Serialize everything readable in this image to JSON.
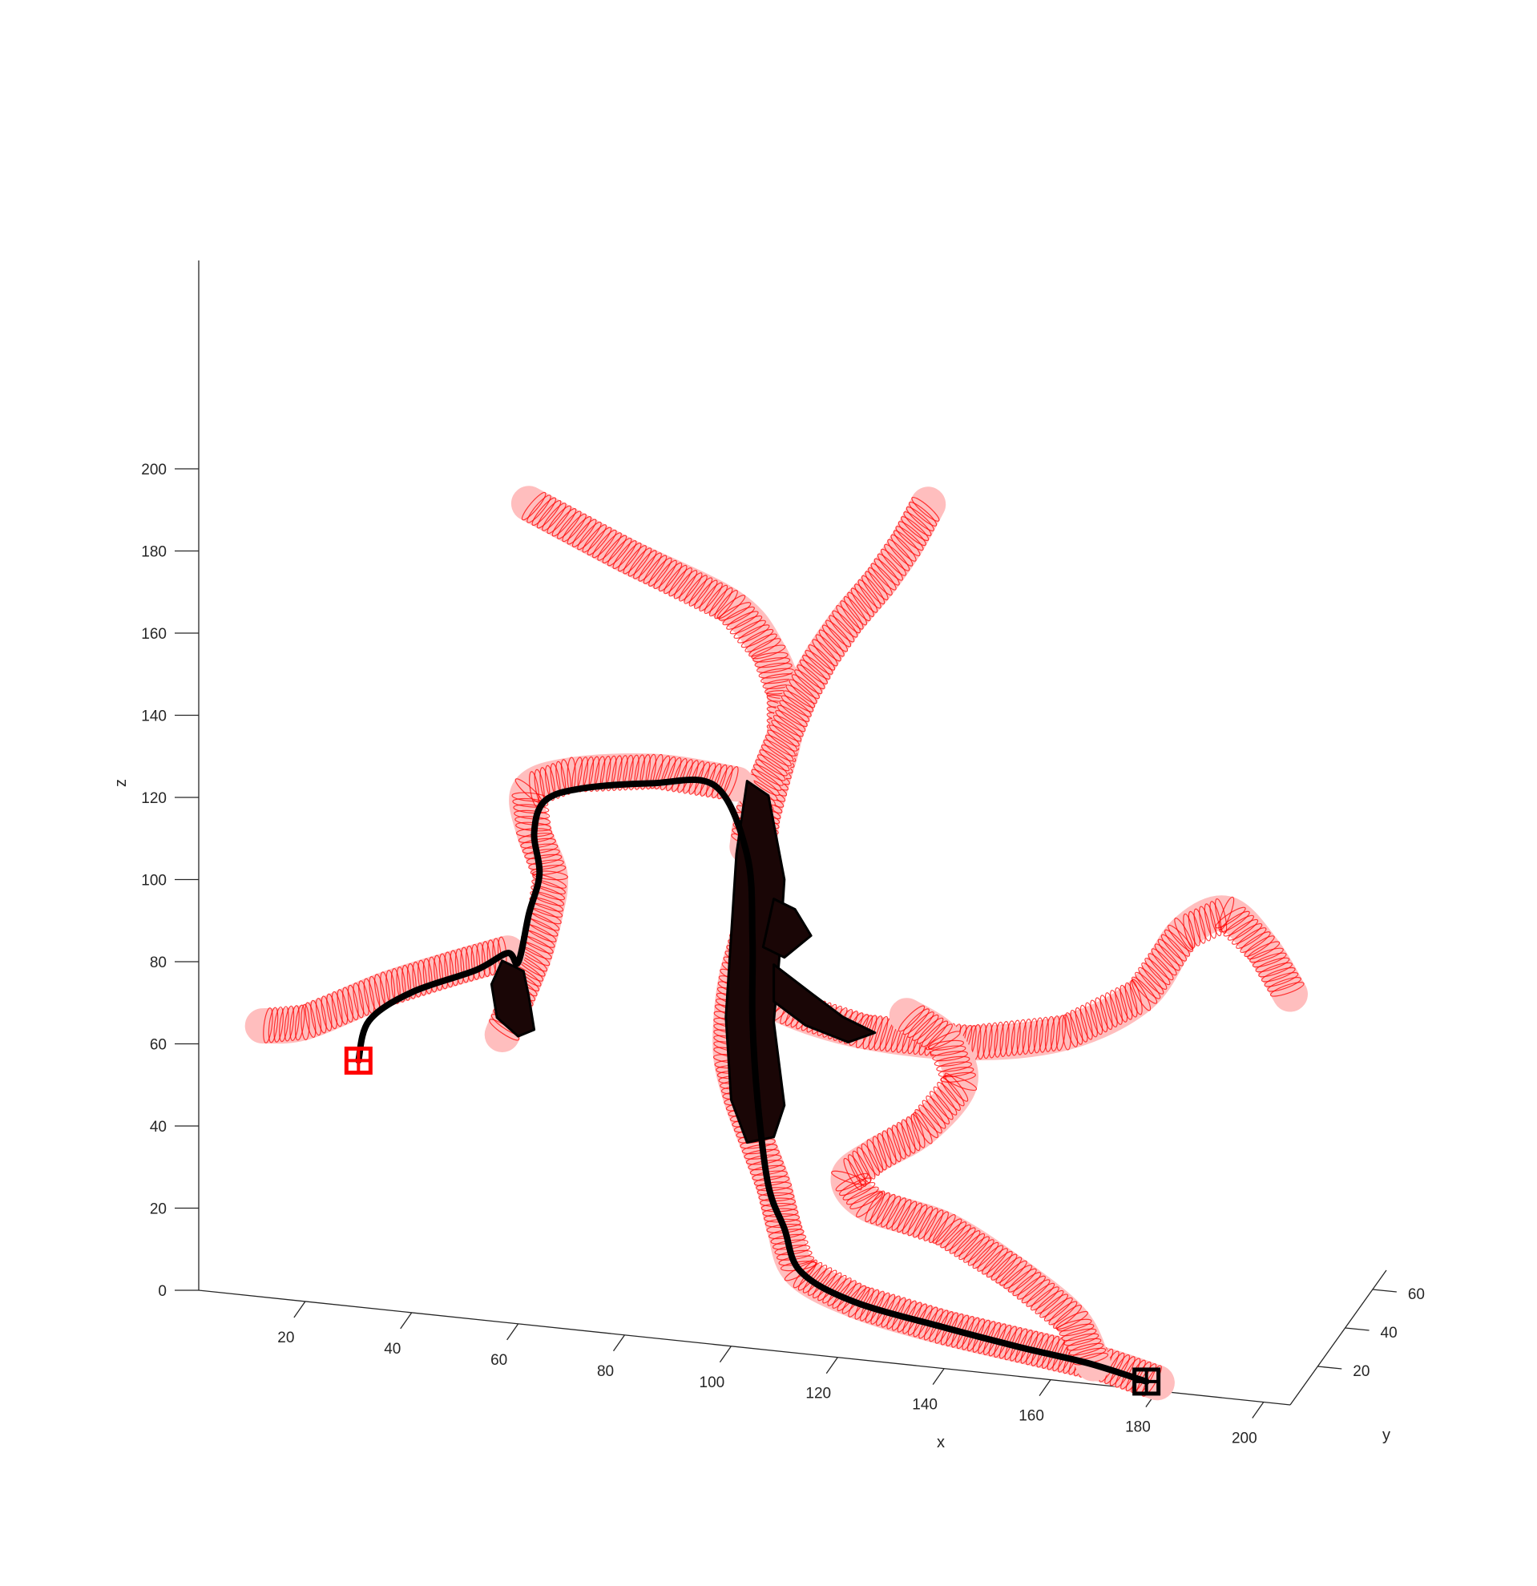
{
  "chart_data": {
    "type": "3d-line",
    "xlabel": "x",
    "ylabel": "y",
    "zlabel": "z",
    "xticks": [
      20,
      40,
      60,
      80,
      100,
      120,
      140,
      160,
      180,
      200
    ],
    "yticks": [
      20,
      40,
      60
    ],
    "zticks": [
      0,
      20,
      40,
      60,
      80,
      100,
      120,
      140,
      160,
      180,
      200
    ],
    "xlim": [
      0,
      205
    ],
    "ylim": [
      0,
      70
    ],
    "zlim": [
      0,
      200
    ],
    "grid": false,
    "colors": {
      "vessel_tubes": "#ff0000",
      "centerline_path": "#000000",
      "start_marker": "#ff0000",
      "end_marker": "#000000",
      "axes": "#262626"
    },
    "series": [
      {
        "role": "vessel-tube",
        "style": "red wireframe rings",
        "points": [
          [
            62,
            200
          ],
          [
            80,
            190
          ],
          [
            100,
            180
          ],
          [
            107,
            170
          ],
          [
            110,
            160
          ],
          [
            110,
            150
          ],
          [
            108,
            140
          ],
          [
            106,
            130
          ],
          [
            105,
            120
          ],
          [
            104,
            110
          ],
          [
            103,
            100
          ],
          [
            101,
            90
          ],
          [
            100,
            80
          ],
          [
            100,
            70
          ],
          [
            102,
            60
          ],
          [
            105,
            50
          ],
          [
            108,
            40
          ],
          [
            110,
            30
          ],
          [
            113,
            20
          ],
          [
            124,
            14
          ],
          [
            140,
            10
          ],
          [
            158,
            7
          ],
          [
            170,
            5
          ],
          [
            180,
            2
          ]
        ]
      },
      {
        "role": "vessel-tube",
        "style": "red wireframe rings",
        "points": [
          [
            137,
            210
          ],
          [
            133,
            200
          ],
          [
            128,
            190
          ],
          [
            122,
            180
          ],
          [
            117,
            170
          ],
          [
            113,
            160
          ],
          [
            110,
            150
          ],
          [
            107,
            140
          ],
          [
            104,
            130
          ],
          [
            103,
            122
          ]
        ]
      },
      {
        "role": "vessel-tube",
        "style": "red wireframe rings",
        "points": [
          [
            103,
            90
          ],
          [
            110,
            84
          ],
          [
            125,
            80
          ],
          [
            145,
            80
          ],
          [
            163,
            85
          ],
          [
            177,
            96
          ],
          [
            185,
            112
          ],
          [
            193,
            118
          ],
          [
            200,
            110
          ],
          [
            205,
            100
          ]
        ]
      },
      {
        "role": "vessel-tube",
        "style": "red wireframe rings",
        "points": [
          [
            101,
            137
          ],
          [
            86,
            138
          ],
          [
            70,
            135
          ],
          [
            62,
            130
          ],
          [
            63,
            120
          ],
          [
            66,
            110
          ],
          [
            65,
            100
          ],
          [
            63,
            90
          ],
          [
            60,
            80
          ],
          [
            57,
            70
          ]
        ]
      },
      {
        "role": "vessel-tube",
        "style": "red wireframe rings",
        "points": [
          [
            58,
            90
          ],
          [
            48,
            85
          ],
          [
            35,
            78
          ],
          [
            20,
            68
          ],
          [
            12,
            66
          ]
        ]
      },
      {
        "role": "vessel-tube",
        "style": "red wireframe rings",
        "points": [
          [
            133,
            85
          ],
          [
            140,
            80
          ],
          [
            143,
            70
          ],
          [
            136,
            58
          ],
          [
            127,
            50
          ],
          [
            122,
            44
          ],
          [
            126,
            38
          ],
          [
            140,
            34
          ],
          [
            153,
            25
          ],
          [
            164,
            15
          ],
          [
            168,
            5
          ]
        ]
      },
      {
        "role": "centerline",
        "style": "thick black path",
        "points": [
          [
            30,
            60
          ],
          [
            32,
            70
          ],
          [
            40,
            78
          ],
          [
            52,
            85
          ],
          [
            58,
            90
          ],
          [
            60,
            88
          ],
          [
            62,
            100
          ],
          [
            64,
            110
          ],
          [
            63,
            120
          ],
          [
            65,
            128
          ],
          [
            72,
            132
          ],
          [
            85,
            135
          ],
          [
            97,
            136
          ],
          [
            103,
            120
          ],
          [
            104,
            100
          ],
          [
            104,
            80
          ],
          [
            105,
            60
          ],
          [
            107,
            40
          ],
          [
            110,
            30
          ],
          [
            113,
            20
          ],
          [
            123,
            14
          ],
          [
            140,
            10
          ],
          [
            155,
            7
          ],
          [
            167,
            5
          ],
          [
            178,
            2
          ]
        ]
      },
      {
        "role": "filled-region",
        "style": "dense black rings",
        "points": [
          [
            103,
            138
          ],
          [
            101,
            120
          ],
          [
            100,
            100
          ],
          [
            99,
            80
          ],
          [
            100,
            60
          ],
          [
            103,
            50
          ],
          [
            108,
            52
          ],
          [
            110,
            60
          ],
          [
            108,
            80
          ],
          [
            109,
            95
          ],
          [
            110,
            115
          ],
          [
            107,
            135
          ]
        ]
      },
      {
        "role": "filled-region",
        "style": "dense black rings",
        "points": [
          [
            108,
            110
          ],
          [
            112,
            108
          ],
          [
            115,
            102
          ],
          [
            110,
            96
          ],
          [
            106,
            98
          ]
        ]
      },
      {
        "role": "filled-region",
        "style": "dense black rings",
        "points": [
          [
            108,
            94
          ],
          [
            115,
            88
          ],
          [
            121,
            83
          ],
          [
            127,
            80
          ],
          [
            122,
            77
          ],
          [
            114,
            80
          ],
          [
            108,
            85
          ]
        ]
      },
      {
        "role": "filled-region",
        "style": "dense black rings",
        "points": [
          [
            57,
            88
          ],
          [
            61,
            86
          ],
          [
            62,
            80
          ],
          [
            63,
            72
          ],
          [
            60,
            70
          ],
          [
            56,
            74
          ],
          [
            55,
            82
          ]
        ]
      }
    ],
    "markers": [
      {
        "role": "start-marker",
        "shape": "square-plus",
        "color": "#ff0000",
        "at": [
          30,
          60
        ]
      },
      {
        "role": "end-marker",
        "shape": "square-plus",
        "color": "#000000",
        "at": [
          178,
          2
        ]
      }
    ]
  }
}
